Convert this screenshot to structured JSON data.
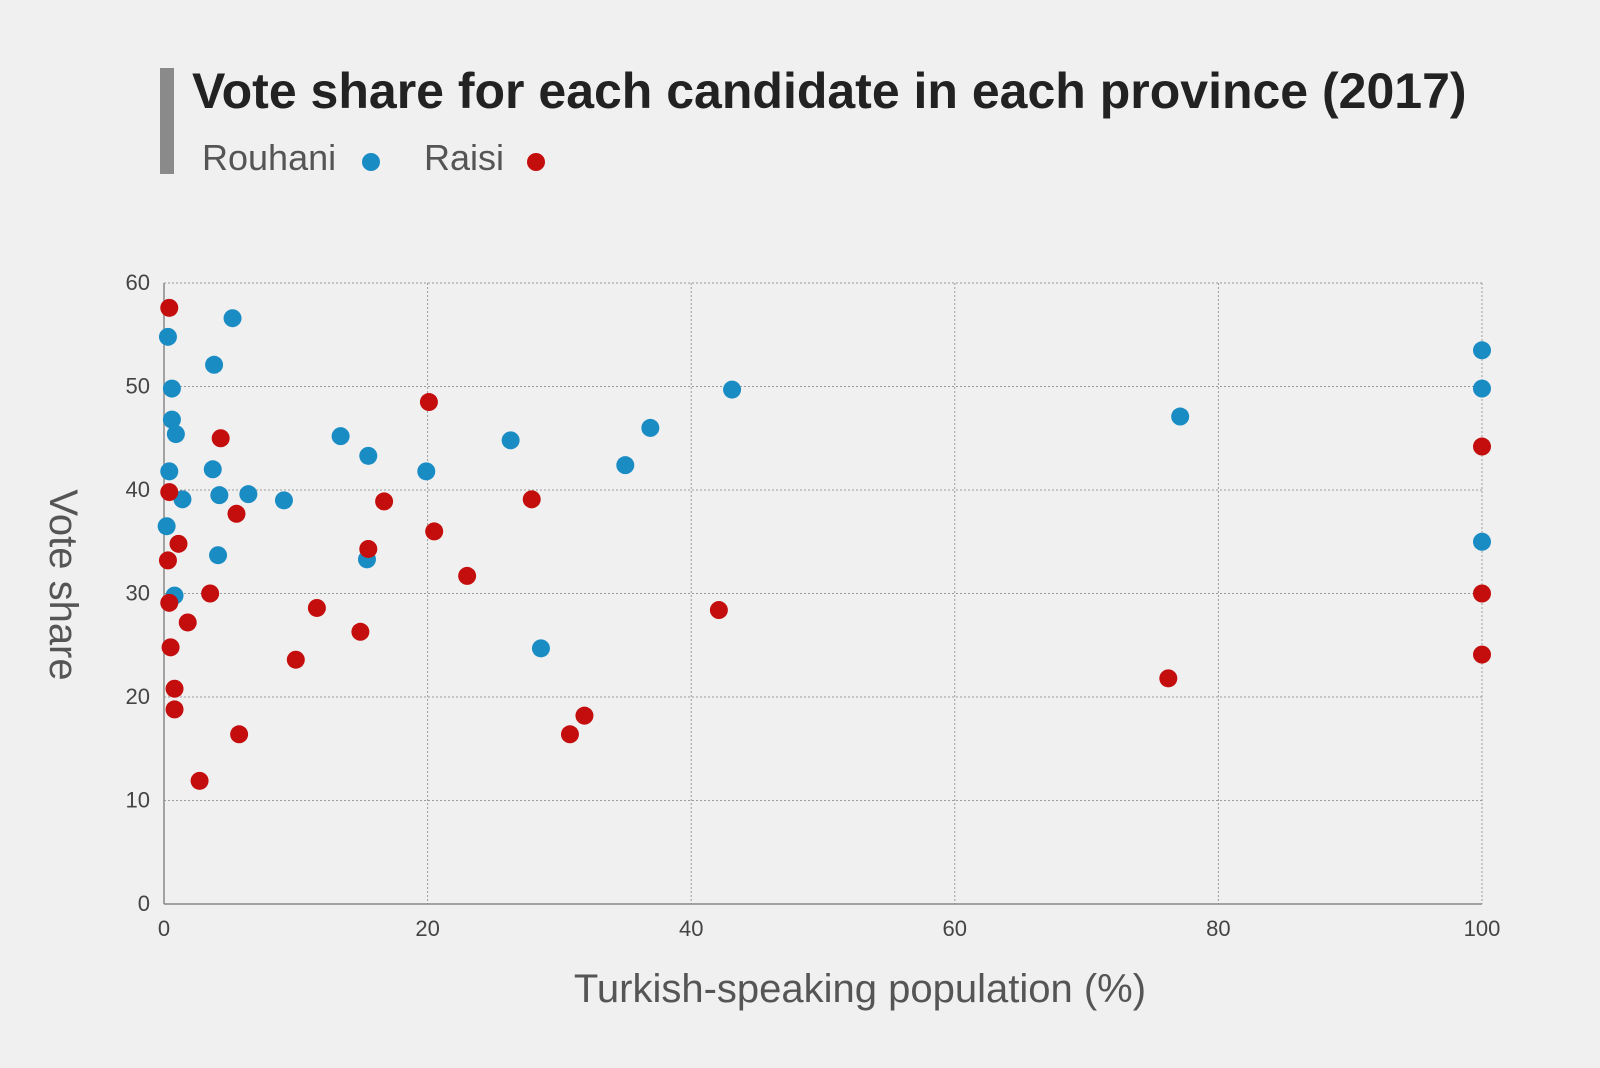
{
  "chart_data": {
    "type": "scatter",
    "title": "Vote share for each candidate in each province (2017)",
    "xlabel": "Turkish-speaking population (%)",
    "ylabel": "Vote share",
    "xlim": [
      0,
      100
    ],
    "ylim": [
      0,
      60
    ],
    "x_ticks": [
      "0",
      "20",
      "40",
      "60",
      "80",
      "100"
    ],
    "y_ticks": [
      "0",
      "10",
      "20",
      "30",
      "40",
      "50",
      "60"
    ],
    "grid": true,
    "legend_position": "top-left",
    "series": [
      {
        "name": "Rouhani",
        "color": "#1a8cc4",
        "points": [
          {
            "x": 0.2,
            "y": 36.5
          },
          {
            "x": 0.3,
            "y": 54.8
          },
          {
            "x": 0.4,
            "y": 41.8
          },
          {
            "x": 0.6,
            "y": 49.8
          },
          {
            "x": 0.6,
            "y": 46.8
          },
          {
            "x": 0.8,
            "y": 29.8
          },
          {
            "x": 0.9,
            "y": 45.4
          },
          {
            "x": 1.4,
            "y": 39.1
          },
          {
            "x": 3.7,
            "y": 42.0
          },
          {
            "x": 3.8,
            "y": 52.1
          },
          {
            "x": 4.1,
            "y": 33.7
          },
          {
            "x": 4.2,
            "y": 39.5
          },
          {
            "x": 5.2,
            "y": 56.6
          },
          {
            "x": 6.4,
            "y": 39.6
          },
          {
            "x": 9.1,
            "y": 39.0
          },
          {
            "x": 13.4,
            "y": 45.2
          },
          {
            "x": 15.4,
            "y": 33.3
          },
          {
            "x": 15.5,
            "y": 43.3
          },
          {
            "x": 19.9,
            "y": 41.8
          },
          {
            "x": 26.3,
            "y": 44.8
          },
          {
            "x": 28.6,
            "y": 24.7
          },
          {
            "x": 35.0,
            "y": 42.4
          },
          {
            "x": 36.9,
            "y": 46.0
          },
          {
            "x": 43.1,
            "y": 49.7
          },
          {
            "x": 77.1,
            "y": 47.1
          },
          {
            "x": 100,
            "y": 53.5
          },
          {
            "x": 100,
            "y": 49.8
          },
          {
            "x": 100,
            "y": 35.0
          }
        ]
      },
      {
        "name": "Raisi",
        "color": "#c40d0d",
        "points": [
          {
            "x": 0.4,
            "y": 57.6
          },
          {
            "x": 0.3,
            "y": 33.2
          },
          {
            "x": 0.4,
            "y": 39.8
          },
          {
            "x": 0.4,
            "y": 29.1
          },
          {
            "x": 0.5,
            "y": 24.8
          },
          {
            "x": 0.8,
            "y": 20.8
          },
          {
            "x": 0.8,
            "y": 18.8
          },
          {
            "x": 1.1,
            "y": 34.8
          },
          {
            "x": 1.8,
            "y": 27.2
          },
          {
            "x": 2.7,
            "y": 11.9
          },
          {
            "x": 3.5,
            "y": 30.0
          },
          {
            "x": 4.3,
            "y": 45.0
          },
          {
            "x": 5.5,
            "y": 37.7
          },
          {
            "x": 5.7,
            "y": 16.4
          },
          {
            "x": 10.0,
            "y": 23.6
          },
          {
            "x": 11.6,
            "y": 28.6
          },
          {
            "x": 14.9,
            "y": 26.3
          },
          {
            "x": 15.5,
            "y": 34.3
          },
          {
            "x": 16.7,
            "y": 38.9
          },
          {
            "x": 20.1,
            "y": 48.5
          },
          {
            "x": 20.5,
            "y": 36.0
          },
          {
            "x": 23.0,
            "y": 31.7
          },
          {
            "x": 27.9,
            "y": 39.1
          },
          {
            "x": 30.8,
            "y": 16.4
          },
          {
            "x": 31.9,
            "y": 18.2
          },
          {
            "x": 42.1,
            "y": 28.4
          },
          {
            "x": 76.2,
            "y": 21.8
          },
          {
            "x": 100,
            "y": 44.2
          },
          {
            "x": 100,
            "y": 30.0
          },
          {
            "x": 100,
            "y": 24.1
          }
        ]
      }
    ]
  }
}
